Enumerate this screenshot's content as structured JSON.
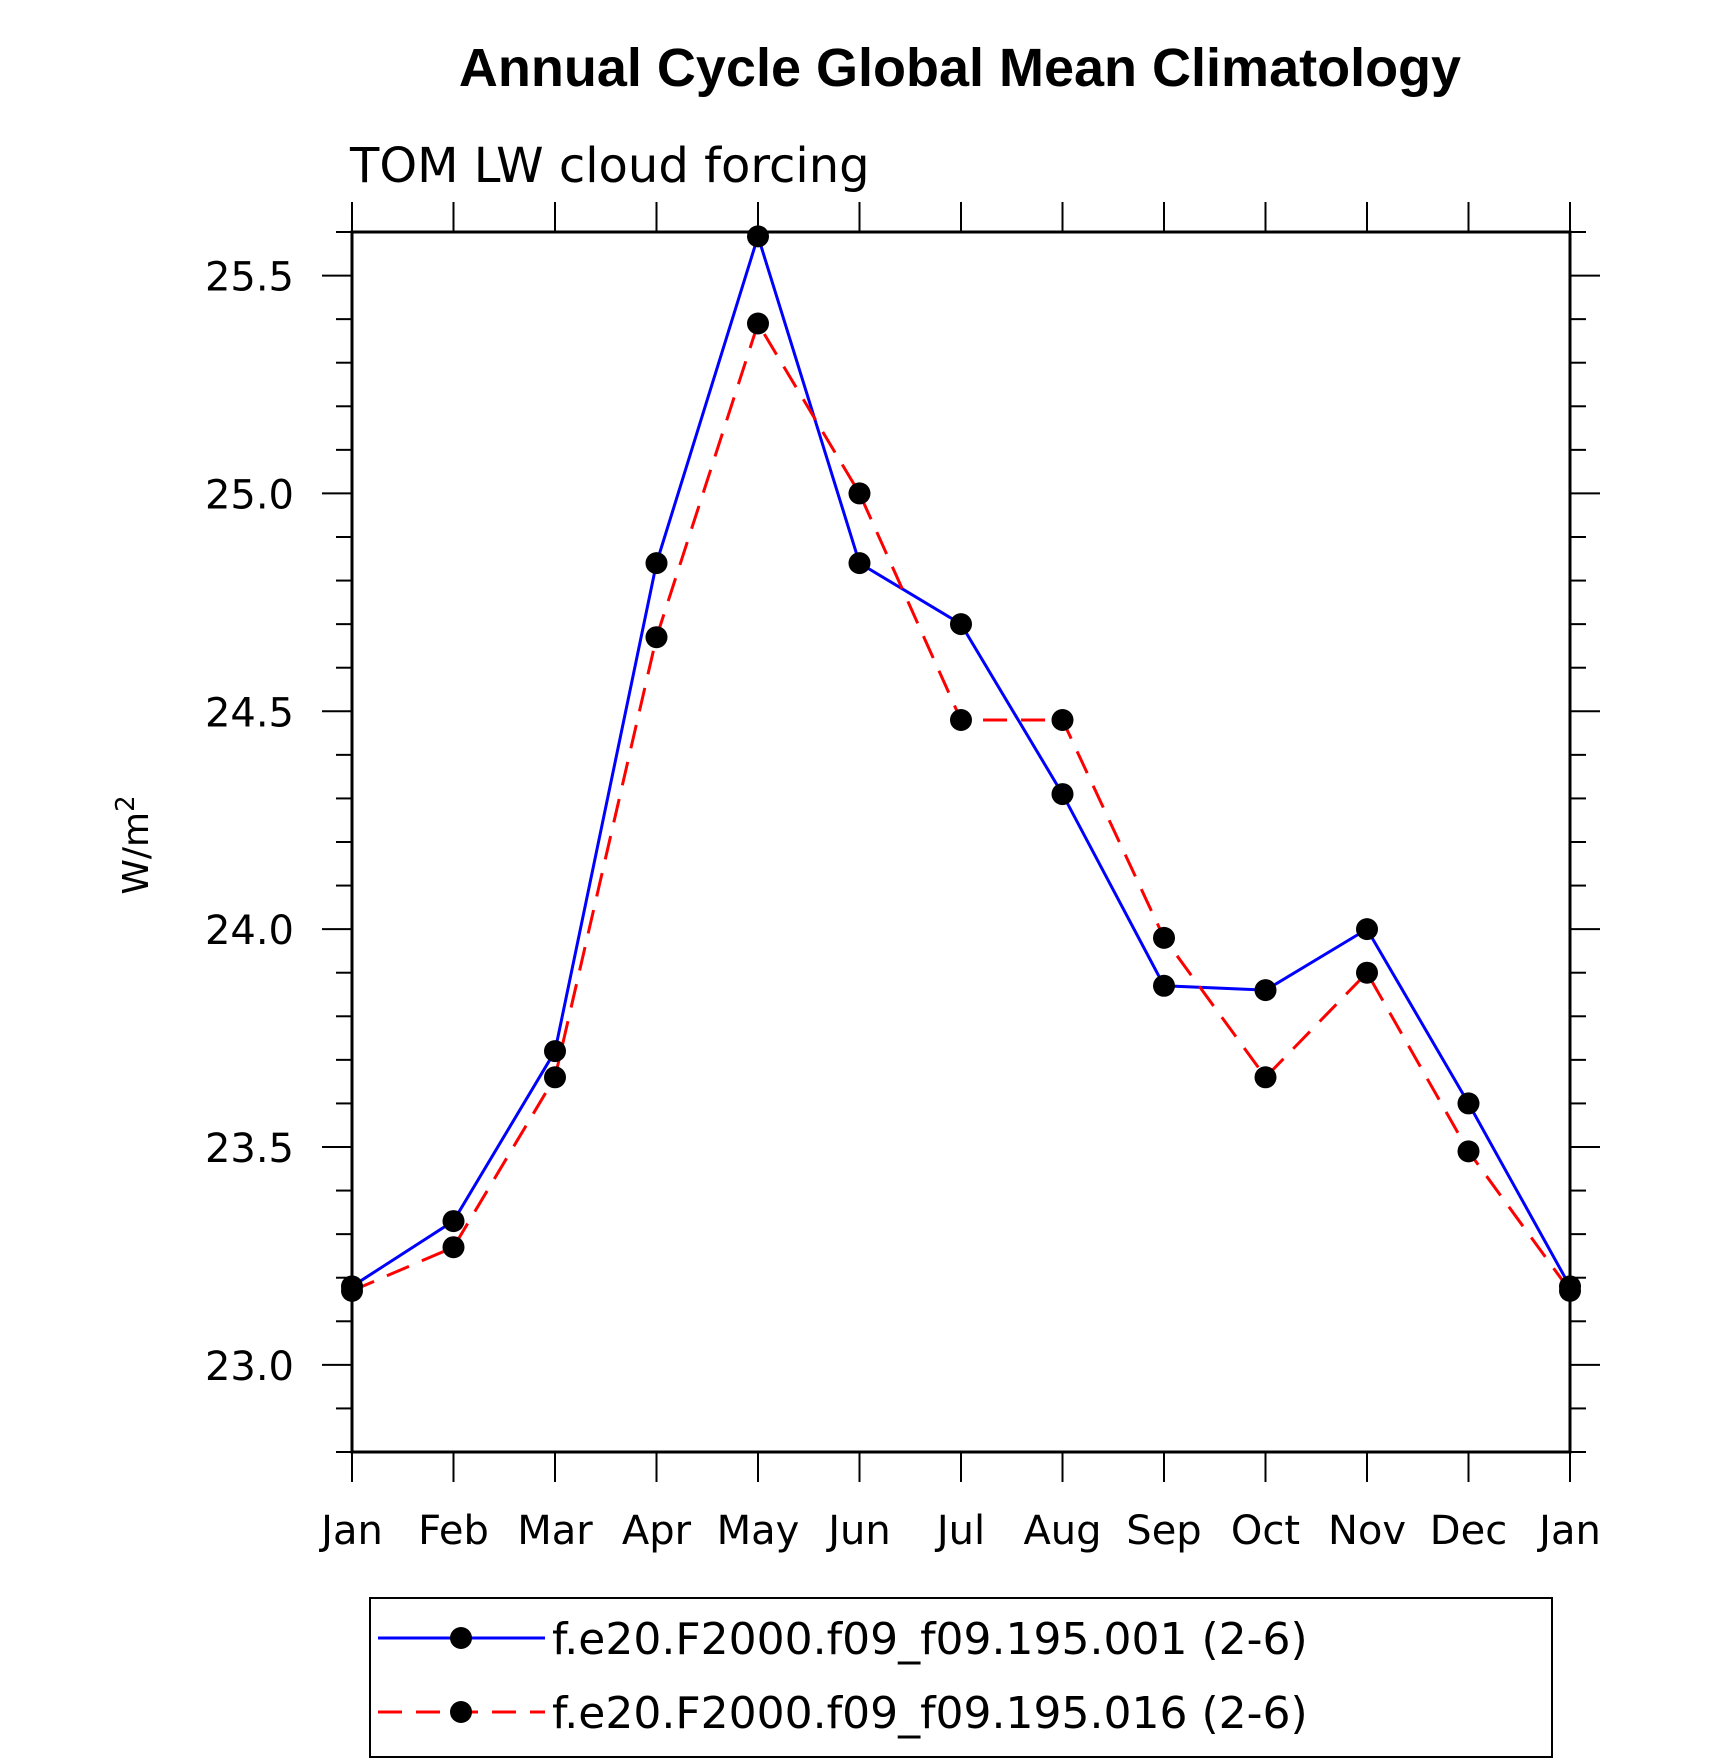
{
  "chart_data": {
    "type": "line",
    "title": "Annual Cycle Global Mean Climatology",
    "subtitle": "TOM LW cloud forcing",
    "ylabel": "W/m",
    "ylabel_sup": "2",
    "xlabel": "",
    "categories": [
      "Jan",
      "Feb",
      "Mar",
      "Apr",
      "May",
      "Jun",
      "Jul",
      "Aug",
      "Sep",
      "Oct",
      "Nov",
      "Dec",
      "Jan"
    ],
    "ylim": [
      22.8,
      25.6
    ],
    "yticks": [
      "23.0",
      "23.5",
      "24.0",
      "24.5",
      "25.0",
      "25.5"
    ],
    "series": [
      {
        "name": "f.e20.F2000.f09_f09.195.001 (2-6)",
        "color": "#0000ff",
        "dash": "solid",
        "values": [
          23.18,
          23.33,
          23.72,
          24.84,
          25.59,
          24.84,
          24.7,
          24.31,
          23.87,
          23.86,
          24.0,
          23.6,
          23.18
        ]
      },
      {
        "name": "f.e20.F2000.f09_f09.195.016 (2-6)",
        "color": "#ff0000",
        "dash": "dashed",
        "values": [
          23.17,
          23.27,
          23.66,
          24.67,
          25.39,
          25.0,
          24.48,
          24.48,
          23.98,
          23.66,
          23.9,
          23.49,
          23.17
        ]
      }
    ],
    "marker_color": "#000000",
    "legend_position": "bottom"
  }
}
